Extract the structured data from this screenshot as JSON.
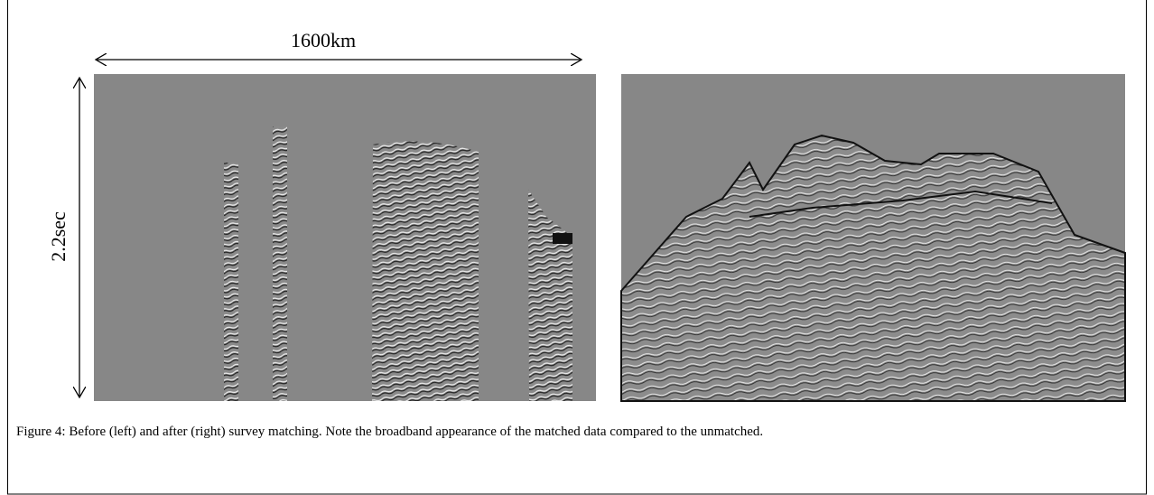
{
  "figure": {
    "scale_label": "1600km",
    "time_label": "2.2sec",
    "caption": "Figure 4:  Before (left) and after (right) survey matching. Note the broadband appearance of the matched data compared to the unmatched."
  }
}
